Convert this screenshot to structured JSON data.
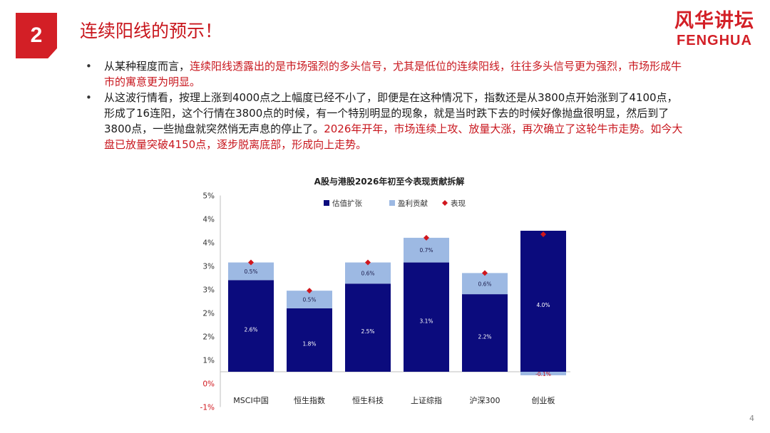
{
  "slide": {
    "number": "2",
    "title": "连续阳线的预示！",
    "logo_cn": "风华讲坛",
    "logo_en": "FENGHUA",
    "page": "4"
  },
  "bullets": [
    {
      "seg1": "从某种程度而言，",
      "seg2": "连续阳线透露出的是市场强烈的多头信号，尤其是低位的连续阳线，往往多头信号更为强烈，市场形成牛市的寓意更为明显。",
      "seg3": ""
    },
    {
      "seg1": "从这波行情看，按理上涨到4000点之上幅度已经不小了，即便是在这种情况下，指数还是从3800点开始涨到了4100点，形成了16连阳，这个行情在3800点的时候，有一个特别明显的现象，就是当时跌下去的时候好像抛盘很明显，然后到了3800点，一些抛盘就突然悄无声息的停止了。",
      "seg2": "2026年开年，市场连续上攻、放量大涨，再次确立了这轮牛市走势。如今大盘已放量突破4150点，逐步脱离底部，形成向上走势。",
      "seg3": ""
    }
  ],
  "chart_data": {
    "type": "bar",
    "stacked": true,
    "title": "A股与港股2026年初至今表现贡献拆解",
    "categories": [
      "MSCI中国",
      "恒生指数",
      "恒生科技",
      "上证综指",
      "沪深300",
      "创业板"
    ],
    "series": [
      {
        "name": "估值扩张",
        "values": [
          2.6,
          1.8,
          2.5,
          3.1,
          2.2,
          4.0
        ],
        "labels": [
          "2.6%",
          "1.8%",
          "2.5%",
          "3.1%",
          "2.2%",
          "4.0%"
        ],
        "color": "#0b0b7d"
      },
      {
        "name": "盈利贡献",
        "values": [
          0.5,
          0.5,
          0.6,
          0.7,
          0.6,
          -0.1
        ],
        "labels": [
          "0.5%",
          "0.5%",
          "0.6%",
          "0.7%",
          "0.6%",
          "-0.1%"
        ],
        "color": "#9db9e3"
      },
      {
        "name": "表现",
        "values": [
          3.1,
          2.3,
          3.1,
          3.8,
          2.8,
          3.9
        ],
        "color": "#d0161d",
        "marker": "diamond"
      }
    ],
    "y_tick_labels": [
      "-1%",
      "0%",
      "1%",
      "2%",
      "2%",
      "3%",
      "3%",
      "4%",
      "4%",
      "5%"
    ],
    "ylim": [
      -1,
      5
    ],
    "legend_position": "top",
    "grid": false
  }
}
